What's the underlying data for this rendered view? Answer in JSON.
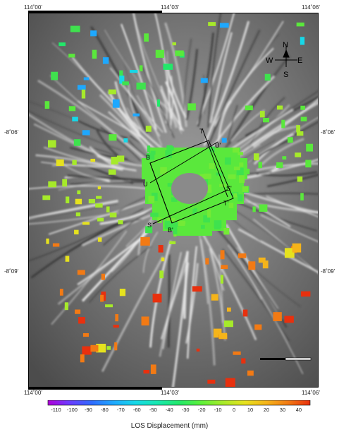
{
  "map": {
    "top_lon_labels": [
      "114˚00'",
      "114˚03'",
      "114˚06'"
    ],
    "bottom_lon_labels": [
      "114˚00'",
      "114˚03'",
      "114˚06'"
    ],
    "left_lat_labels": [
      "-8˚06'",
      "-8˚09'"
    ],
    "right_lat_labels": [
      "-8˚06'",
      "-8˚09'"
    ],
    "background": "grayscale shaded-relief volcano with white valley streaks",
    "colors": {
      "frame": "#000000",
      "relief_dark": "#4a4a4a",
      "relief_light": "#d8d8d8"
    }
  },
  "compass": {
    "north": "N",
    "south": "S",
    "east": "E",
    "west": "W"
  },
  "profiles": [
    {
      "start": "B",
      "end": "B'"
    },
    {
      "start": "T",
      "end": "T'"
    },
    {
      "start": "U",
      "end": "U'"
    },
    {
      "start": "S",
      "end": "S'"
    }
  ],
  "colorbar": {
    "label": "LOS Displacement (mm)",
    "ticks": [
      "-110",
      "-100",
      "-90",
      "-80",
      "-70",
      "-60",
      "-50",
      "-40",
      "-30",
      "-20",
      "-10",
      "0",
      "10",
      "20",
      "30",
      "40"
    ],
    "range": [
      -115,
      47
    ],
    "colors": [
      "#b000d8",
      "#6a3cff",
      "#2f6bff",
      "#1ea8ff",
      "#16d8e8",
      "#18e8b0",
      "#22e86a",
      "#5cf03a",
      "#a6ea2a",
      "#e6e21e",
      "#f5b41a",
      "#f27a14",
      "#e8300e"
    ]
  },
  "scale_bar": {
    "segments": 2
  }
}
